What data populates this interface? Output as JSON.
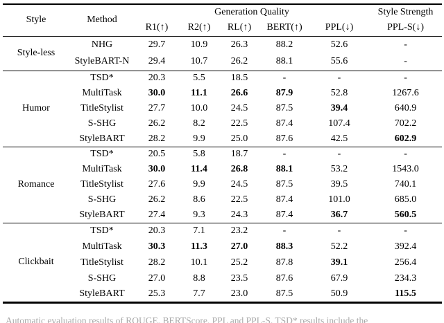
{
  "table": {
    "header": {
      "style": "Style",
      "method": "Method",
      "group_generation": "Generation Quality",
      "group_style_strength": "Style Strength",
      "metrics": [
        "R1(↑)",
        "R2(↑)",
        "RL(↑)",
        "BERT(↑)",
        "PPL(↓)"
      ],
      "style_strength_metric": "PPL-S(↓)"
    },
    "sections": [
      {
        "style": "Style-less",
        "rows": [
          {
            "method": "NHG",
            "values": [
              "29.7",
              "10.9",
              "26.3",
              "88.2",
              "52.6",
              "-"
            ],
            "bold": []
          },
          {
            "method": "StyleBART-N",
            "values": [
              "29.4",
              "10.7",
              "26.2",
              "88.1",
              "55.6",
              "-"
            ],
            "bold": []
          }
        ]
      },
      {
        "style": "Humor",
        "rows": [
          {
            "method": "TSD*",
            "values": [
              "20.3",
              "5.5",
              "18.5",
              "-",
              "-",
              "-"
            ],
            "bold": []
          },
          {
            "method": "MultiTask",
            "values": [
              "30.0",
              "11.1",
              "26.6",
              "87.9",
              "52.8",
              "1267.6"
            ],
            "bold": [
              0,
              1,
              2,
              3
            ]
          },
          {
            "method": "TitleStylist",
            "values": [
              "27.7",
              "10.0",
              "24.5",
              "87.5",
              "39.4",
              "640.9"
            ],
            "bold": [
              4
            ]
          },
          {
            "method": "S-SHG",
            "values": [
              "26.2",
              "8.2",
              "22.5",
              "87.4",
              "107.4",
              "702.2"
            ],
            "bold": []
          },
          {
            "method": "StyleBART",
            "values": [
              "28.2",
              "9.9",
              "25.0",
              "87.6",
              "42.5",
              "602.9"
            ],
            "bold": [
              5
            ]
          }
        ]
      },
      {
        "style": "Romance",
        "rows": [
          {
            "method": "TSD*",
            "values": [
              "20.5",
              "5.8",
              "18.7",
              "-",
              "-",
              "-"
            ],
            "bold": []
          },
          {
            "method": "MultiTask",
            "values": [
              "30.0",
              "11.4",
              "26.8",
              "88.1",
              "53.2",
              "1543.0"
            ],
            "bold": [
              0,
              1,
              2,
              3
            ]
          },
          {
            "method": "TitleStylist",
            "values": [
              "27.6",
              "9.9",
              "24.5",
              "87.5",
              "39.5",
              "740.1"
            ],
            "bold": []
          },
          {
            "method": "S-SHG",
            "values": [
              "26.2",
              "8.6",
              "22.5",
              "87.4",
              "101.0",
              "685.0"
            ],
            "bold": []
          },
          {
            "method": "StyleBART",
            "values": [
              "27.4",
              "9.3",
              "24.3",
              "87.4",
              "36.7",
              "560.5"
            ],
            "bold": [
              4,
              5
            ]
          }
        ]
      },
      {
        "style": "Clickbait",
        "rows": [
          {
            "method": "TSD*",
            "values": [
              "20.3",
              "7.1",
              "23.2",
              "-",
              "-",
              "-"
            ],
            "bold": []
          },
          {
            "method": "MultiTask",
            "values": [
              "30.3",
              "11.3",
              "27.0",
              "88.3",
              "52.2",
              "392.4"
            ],
            "bold": [
              0,
              1,
              2,
              3
            ]
          },
          {
            "method": "TitleStylist",
            "values": [
              "28.2",
              "10.1",
              "25.2",
              "87.8",
              "39.1",
              "256.4"
            ],
            "bold": [
              4
            ]
          },
          {
            "method": "S-SHG",
            "values": [
              "27.0",
              "8.8",
              "23.5",
              "87.6",
              "67.9",
              "234.3"
            ],
            "bold": []
          },
          {
            "method": "StyleBART",
            "values": [
              "25.3",
              "7.7",
              "23.0",
              "87.5",
              "50.9",
              "115.5"
            ],
            "bold": [
              5
            ]
          }
        ]
      }
    ]
  },
  "caption_clipped": "Automatic evaluation results of ROUGE, BERTScore, PPL and PPL-S. TSD* results include the",
  "colors": {
    "background": "#ffffff",
    "text": "#000000",
    "rule": "#000000",
    "caption": "#a9a9a9"
  }
}
